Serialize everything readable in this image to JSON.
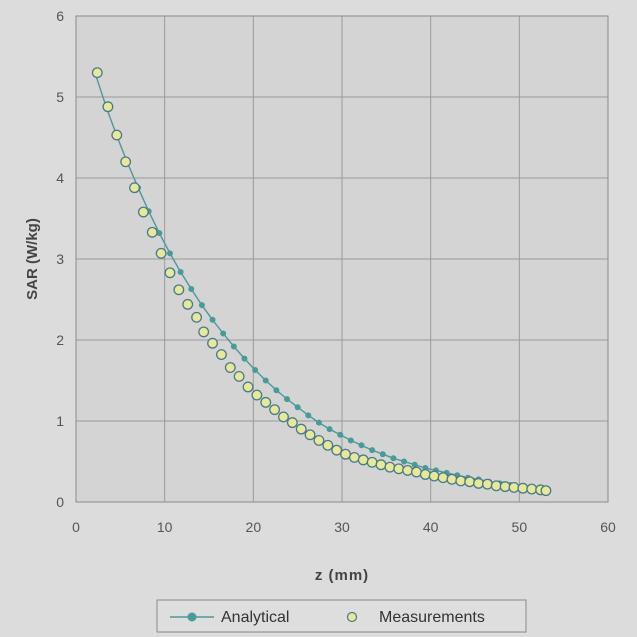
{
  "chart_data": {
    "type": "scatter",
    "xlabel": "z (mm)",
    "ylabel": "SAR (W/kg)",
    "xlim": [
      0,
      60
    ],
    "ylim": [
      0,
      6
    ],
    "x_ticks": [
      "0",
      "10",
      "20",
      "30",
      "40",
      "50",
      "60"
    ],
    "y_ticks": [
      "0",
      "1",
      "2",
      "3",
      "4",
      "5",
      "6"
    ],
    "grid": true,
    "legend_position": "bottom",
    "series": [
      {
        "name": "Analytical",
        "style": "line with markers",
        "color": "#4a9a9a",
        "x": [
          2.2,
          3.4,
          4.6,
          5.8,
          7.0,
          8.2,
          9.4,
          10.6,
          11.8,
          13.0,
          14.2,
          15.4,
          16.6,
          17.8,
          19.0,
          20.2,
          21.4,
          22.6,
          23.8,
          25.0,
          26.2,
          27.4,
          28.6,
          29.8,
          31.0,
          32.2,
          33.4,
          34.6,
          35.8,
          37.0,
          38.2,
          39.4,
          40.6,
          41.8,
          43.0,
          44.2,
          45.4,
          46.6,
          47.8,
          49.0,
          50.2,
          51.4,
          52.6
        ],
        "y": [
          5.28,
          4.88,
          4.52,
          4.19,
          3.88,
          3.59,
          3.32,
          3.07,
          2.84,
          2.63,
          2.43,
          2.25,
          2.08,
          1.92,
          1.77,
          1.63,
          1.5,
          1.38,
          1.27,
          1.17,
          1.07,
          0.98,
          0.9,
          0.83,
          0.76,
          0.7,
          0.64,
          0.59,
          0.54,
          0.5,
          0.46,
          0.42,
          0.39,
          0.36,
          0.33,
          0.3,
          0.28,
          0.25,
          0.23,
          0.21,
          0.19,
          0.17,
          0.15
        ]
      },
      {
        "name": "Measurements",
        "style": "markers",
        "color": "#e8e89a",
        "x": [
          2.4,
          3.6,
          4.6,
          5.6,
          6.6,
          7.6,
          8.6,
          9.6,
          10.6,
          11.6,
          12.6,
          13.6,
          14.4,
          15.4,
          16.4,
          17.4,
          18.4,
          19.4,
          20.4,
          21.4,
          22.4,
          23.4,
          24.4,
          25.4,
          26.4,
          27.4,
          28.4,
          29.4,
          30.4,
          31.4,
          32.4,
          33.4,
          34.4,
          35.4,
          36.4,
          37.4,
          38.4,
          39.4,
          40.4,
          41.4,
          42.4,
          43.4,
          44.4,
          45.4,
          46.4,
          47.4,
          48.4,
          49.4,
          50.4,
          51.4,
          52.4,
          53.0
        ],
        "y": [
          5.3,
          4.88,
          4.53,
          4.2,
          3.88,
          3.58,
          3.33,
          3.07,
          2.83,
          2.62,
          2.44,
          2.28,
          2.1,
          1.96,
          1.82,
          1.66,
          1.55,
          1.42,
          1.32,
          1.23,
          1.14,
          1.05,
          0.98,
          0.9,
          0.83,
          0.76,
          0.7,
          0.64,
          0.59,
          0.55,
          0.52,
          0.49,
          0.46,
          0.43,
          0.41,
          0.39,
          0.37,
          0.34,
          0.32,
          0.3,
          0.28,
          0.26,
          0.25,
          0.23,
          0.22,
          0.2,
          0.19,
          0.18,
          0.17,
          0.16,
          0.15,
          0.14
        ]
      }
    ],
    "colors": {
      "page_background": "#dcdcdc",
      "plot_background": "#d4d4d4",
      "gridline": "#9a9a9a",
      "curve": "#4a9a9a",
      "marker_fill": "#e8e89a",
      "marker_stroke": "#4a7a8a"
    }
  }
}
